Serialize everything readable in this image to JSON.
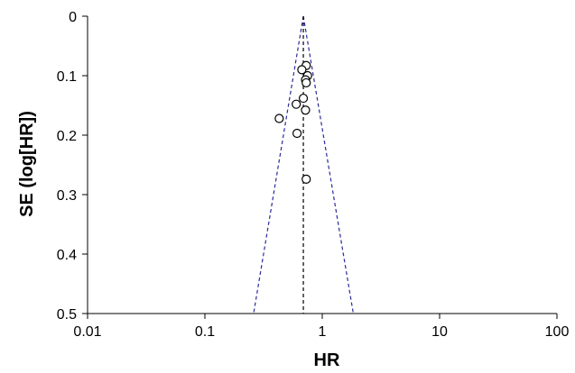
{
  "chart_data": {
    "type": "scatter",
    "subtype": "funnel-plot",
    "title": "",
    "xlabel": "HR",
    "ylabel": "SE (log[HR])",
    "x_scale": "log",
    "xlim": [
      0.01,
      100
    ],
    "x_ticks": [
      0.01,
      0.1,
      1,
      10,
      100
    ],
    "x_tick_labels": [
      "0.01",
      "0.1",
      "1",
      "10",
      "100"
    ],
    "ylim": [
      0,
      0.5
    ],
    "y_inverted": true,
    "y_ticks": [
      0,
      0.1,
      0.2,
      0.3,
      0.4,
      0.5
    ],
    "y_tick_labels": [
      "0",
      "0.1",
      "0.2",
      "0.3",
      "0.4",
      "0.5"
    ],
    "grid": false,
    "legend": "none",
    "pooled_estimate": 0.69,
    "funnel_bounds_at_max_se": [
      0.26,
      1.84
    ],
    "line_color": "#2b2b9c",
    "marker_color": "#000000",
    "points": [
      {
        "x": 0.73,
        "y": 0.083
      },
      {
        "x": 0.67,
        "y": 0.09
      },
      {
        "x": 0.75,
        "y": 0.1
      },
      {
        "x": 0.72,
        "y": 0.107
      },
      {
        "x": 0.73,
        "y": 0.112
      },
      {
        "x": 0.69,
        "y": 0.138
      },
      {
        "x": 0.6,
        "y": 0.148
      },
      {
        "x": 0.72,
        "y": 0.158
      },
      {
        "x": 0.43,
        "y": 0.172
      },
      {
        "x": 0.61,
        "y": 0.197
      },
      {
        "x": 0.73,
        "y": 0.274
      }
    ]
  }
}
